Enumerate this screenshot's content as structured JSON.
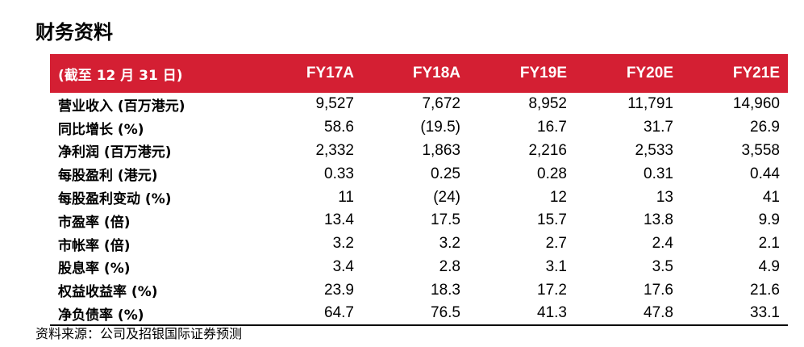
{
  "title": "财务资料",
  "table": {
    "header": [
      "(截至 12 月 31 日)",
      "FY17A",
      "FY18A",
      "FY19E",
      "FY20E",
      "FY21E"
    ],
    "rows": [
      [
        "营业收入 (百万港元)",
        "9,527",
        "7,672",
        "8,952",
        "11,791",
        "14,960"
      ],
      [
        "同比增长 (%)",
        "58.6",
        "(19.5)",
        "16.7",
        "31.7",
        "26.9"
      ],
      [
        "净利润 (百万港元)",
        "2,332",
        "1,863",
        "2,216",
        "2,533",
        "3,558"
      ],
      [
        "每股盈利 (港元)",
        "0.33",
        "0.25",
        "0.28",
        "0.31",
        "0.44"
      ],
      [
        "每股盈利变动 (%)",
        "11",
        "(24)",
        "12",
        "13",
        "41"
      ],
      [
        "市盈率 (倍)",
        "13.4",
        "17.5",
        "15.7",
        "13.8",
        "9.9"
      ],
      [
        "市帐率 (倍)",
        "3.2",
        "3.2",
        "2.7",
        "2.4",
        "2.1"
      ],
      [
        "股息率 (%)",
        "3.4",
        "2.8",
        "3.1",
        "3.5",
        "4.9"
      ],
      [
        "权益收益率 (%)",
        "23.9",
        "18.3",
        "17.2",
        "17.6",
        "21.6"
      ],
      [
        "净负债率 (%)",
        "64.7",
        "76.5",
        "41.3",
        "47.8",
        "33.1"
      ]
    ]
  },
  "source": "资料来源：公司及招银国际证券预测",
  "colors": {
    "header_bg": "#d41f33",
    "header_text": "#ffffff"
  }
}
